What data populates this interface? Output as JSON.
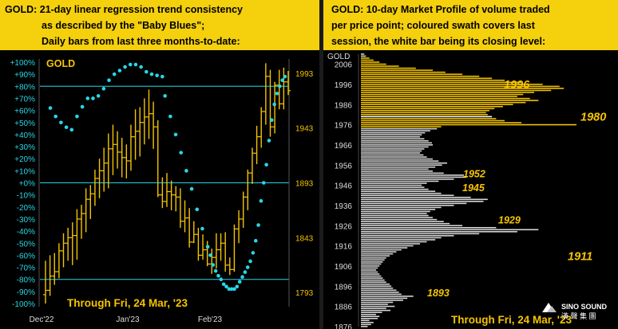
{
  "left": {
    "header_lines": [
      "GOLD: 21-day linear regression trend consistency",
      "as described by the \"Baby Blues\";",
      "Daily bars from last three months-to-date:"
    ],
    "legend": "GOLD",
    "footer": "Through Fri, 24 Mar, '23",
    "colors": {
      "bars": "#f5c400",
      "dots": "#27d7e7",
      "lines": "#27d7e7",
      "text": "#f5c400"
    }
  },
  "right": {
    "header_lines": [
      "GOLD: 10-day Market Profile of volume traded",
      "per price point; coloured swath covers last",
      "session, the white bar being its closing level:"
    ],
    "legend": "GOLD",
    "footer": "Through Fri, 24 Mar, '23",
    "colors": {
      "swath": "#f5c400",
      "profile": "#d8d8d8",
      "close": "#ffffff",
      "text": "#f5c400"
    }
  },
  "watermark": {
    "line1": "SINO SOUND",
    "line2": "漢 聲 集 團"
  },
  "chart_data": [
    {
      "type": "bar",
      "subtype": "ohlc-with-consistency-dots",
      "title": "GOLD: 21-day linear regression trend consistency as described by the \"Baby Blues\"; Daily bars from last three months-to-date:",
      "legend": "GOLD",
      "x_tick_labels": [
        "Dec'22",
        "Jan'23",
        "Feb'23"
      ],
      "left_axis": {
        "ticks": [
          "+100%",
          "+90%",
          "+80%",
          "+70%",
          "+60%",
          "+50%",
          "+40%",
          "+30%",
          "+20%",
          "+10%",
          "+0%",
          "-10%",
          "-20%",
          "-30%",
          "-40%",
          "-50%",
          "-60%",
          "-70%",
          "-80%",
          "-90%",
          "-100%"
        ],
        "range": [
          -100,
          100
        ]
      },
      "right_axis": {
        "ticks": [
          "1993",
          "1943",
          "1893",
          "1843",
          "1793"
        ],
        "range": [
          1783,
          2003
        ]
      },
      "reference_lines_pct": [
        80,
        0,
        -80
      ],
      "bars": [
        {
          "o": 1791,
          "h": 1822,
          "l": 1783,
          "c": 1795
        },
        {
          "o": 1795,
          "h": 1827,
          "l": 1790,
          "c": 1808
        },
        {
          "o": 1808,
          "h": 1829,
          "l": 1800,
          "c": 1812
        },
        {
          "o": 1812,
          "h": 1838,
          "l": 1806,
          "c": 1831
        },
        {
          "o": 1831,
          "h": 1847,
          "l": 1816,
          "c": 1838
        },
        {
          "o": 1838,
          "h": 1852,
          "l": 1822,
          "c": 1843
        },
        {
          "o": 1843,
          "h": 1857,
          "l": 1818,
          "c": 1845
        },
        {
          "o": 1845,
          "h": 1869,
          "l": 1823,
          "c": 1860
        },
        {
          "o": 1860,
          "h": 1873,
          "l": 1842,
          "c": 1865
        },
        {
          "o": 1865,
          "h": 1888,
          "l": 1848,
          "c": 1878
        },
        {
          "o": 1878,
          "h": 1891,
          "l": 1860,
          "c": 1883
        },
        {
          "o": 1883,
          "h": 1905,
          "l": 1872,
          "c": 1897
        },
        {
          "o": 1897,
          "h": 1915,
          "l": 1879,
          "c": 1904
        },
        {
          "o": 1904,
          "h": 1925,
          "l": 1885,
          "c": 1911
        },
        {
          "o": 1911,
          "h": 1938,
          "l": 1888,
          "c": 1924
        },
        {
          "o": 1924,
          "h": 1946,
          "l": 1900,
          "c": 1928
        },
        {
          "o": 1928,
          "h": 1940,
          "l": 1906,
          "c": 1921
        },
        {
          "o": 1921,
          "h": 1934,
          "l": 1898,
          "c": 1916
        },
        {
          "o": 1916,
          "h": 1928,
          "l": 1897,
          "c": 1913
        },
        {
          "o": 1913,
          "h": 1946,
          "l": 1904,
          "c": 1935
        },
        {
          "o": 1935,
          "h": 1960,
          "l": 1914,
          "c": 1940
        },
        {
          "o": 1940,
          "h": 1962,
          "l": 1917,
          "c": 1948
        },
        {
          "o": 1948,
          "h": 1970,
          "l": 1928,
          "c": 1953
        },
        {
          "o": 1953,
          "h": 1978,
          "l": 1933,
          "c": 1956
        },
        {
          "o": 1956,
          "h": 1967,
          "l": 1924,
          "c": 1944
        },
        {
          "o": 1944,
          "h": 1950,
          "l": 1880,
          "c": 1882
        },
        {
          "o": 1882,
          "h": 1898,
          "l": 1870,
          "c": 1876
        },
        {
          "o": 1876,
          "h": 1902,
          "l": 1871,
          "c": 1885
        },
        {
          "o": 1885,
          "h": 1895,
          "l": 1868,
          "c": 1882
        },
        {
          "o": 1882,
          "h": 1890,
          "l": 1867,
          "c": 1880
        },
        {
          "o": 1880,
          "h": 1888,
          "l": 1852,
          "c": 1858
        },
        {
          "o": 1858,
          "h": 1877,
          "l": 1848,
          "c": 1861
        },
        {
          "o": 1861,
          "h": 1870,
          "l": 1834,
          "c": 1839
        },
        {
          "o": 1839,
          "h": 1858,
          "l": 1838,
          "c": 1846
        },
        {
          "o": 1846,
          "h": 1852,
          "l": 1822,
          "c": 1827
        },
        {
          "o": 1827,
          "h": 1846,
          "l": 1823,
          "c": 1832
        },
        {
          "o": 1832,
          "h": 1840,
          "l": 1817,
          "c": 1819
        },
        {
          "o": 1819,
          "h": 1833,
          "l": 1810,
          "c": 1825
        },
        {
          "o": 1825,
          "h": 1847,
          "l": 1815,
          "c": 1832
        },
        {
          "o": 1832,
          "h": 1847,
          "l": 1822,
          "c": 1838
        },
        {
          "o": 1838,
          "h": 1848,
          "l": 1812,
          "c": 1818
        },
        {
          "o": 1818,
          "h": 1825,
          "l": 1809,
          "c": 1814
        },
        {
          "o": 1814,
          "h": 1855,
          "l": 1812,
          "c": 1851
        },
        {
          "o": 1851,
          "h": 1868,
          "l": 1838,
          "c": 1860
        },
        {
          "o": 1860,
          "h": 1885,
          "l": 1852,
          "c": 1880
        },
        {
          "o": 1880,
          "h": 1905,
          "l": 1868,
          "c": 1902
        },
        {
          "o": 1902,
          "h": 1925,
          "l": 1892,
          "c": 1920
        },
        {
          "o": 1920,
          "h": 1945,
          "l": 1910,
          "c": 1935
        },
        {
          "o": 1935,
          "h": 1962,
          "l": 1925,
          "c": 1958
        },
        {
          "o": 1958,
          "h": 2002,
          "l": 1946,
          "c": 1990
        },
        {
          "o": 1990,
          "h": 1996,
          "l": 1935,
          "c": 1944
        },
        {
          "o": 1944,
          "h": 1985,
          "l": 1938,
          "c": 1982
        },
        {
          "o": 1982,
          "h": 1996,
          "l": 1960,
          "c": 1965
        },
        {
          "o": 1965,
          "h": 1998,
          "l": 1960,
          "c": 1985
        },
        {
          "o": 1985,
          "h": 1995,
          "l": 1973,
          "c": 1977
        }
      ],
      "consistency_pct": [
        [
          3,
          62
        ],
        [
          5,
          55
        ],
        [
          7,
          50
        ],
        [
          9,
          46
        ],
        [
          11,
          44
        ],
        [
          13,
          55
        ],
        [
          15,
          63
        ],
        [
          17,
          70
        ],
        [
          19,
          70
        ],
        [
          21,
          72
        ],
        [
          23,
          78
        ],
        [
          25,
          85
        ],
        [
          27,
          90
        ],
        [
          29,
          93
        ],
        [
          31,
          96
        ],
        [
          33,
          98
        ],
        [
          35,
          98
        ],
        [
          37,
          96
        ],
        [
          39,
          92
        ],
        [
          41,
          90
        ],
        [
          43,
          89
        ],
        [
          45,
          88
        ],
        [
          46,
          72
        ],
        [
          48,
          55
        ],
        [
          50,
          40
        ],
        [
          52,
          25
        ],
        [
          54,
          10
        ],
        [
          56,
          -5
        ],
        [
          58,
          -22
        ],
        [
          60,
          -38
        ],
        [
          62,
          -53
        ],
        [
          63,
          -60
        ],
        [
          64,
          -68
        ],
        [
          65,
          -73
        ],
        [
          66,
          -77
        ],
        [
          67,
          -80
        ],
        [
          68,
          -84
        ],
        [
          69,
          -86
        ],
        [
          70,
          -88
        ],
        [
          71,
          -88
        ],
        [
          72,
          -88
        ],
        [
          73,
          -86
        ],
        [
          74,
          -82
        ],
        [
          75,
          -78
        ],
        [
          76,
          -74
        ],
        [
          77,
          -70
        ],
        [
          78,
          -65
        ],
        [
          79,
          -58
        ],
        [
          80,
          -48
        ],
        [
          81,
          -35
        ],
        [
          82,
          -15
        ],
        [
          83,
          0
        ],
        [
          84,
          15
        ],
        [
          85,
          35
        ],
        [
          86,
          52
        ],
        [
          87,
          65
        ],
        [
          88,
          74
        ],
        [
          89,
          80
        ],
        [
          90,
          85
        ],
        [
          91,
          88
        ]
      ],
      "footer": "Through Fri, 24 Mar, '23"
    },
    {
      "type": "bar",
      "subtype": "horizontal-volume-profile",
      "title": "GOLD: 10-day Market Profile of volume traded per price point; coloured swath covers last session, the white bar being its closing level:",
      "legend": "GOLD",
      "y_ticks": [
        2006,
        1996,
        1986,
        1976,
        1966,
        1956,
        1946,
        1936,
        1926,
        1916,
        1906,
        1896,
        1886,
        1876
      ],
      "y_range": [
        1876,
        2011
      ],
      "swath_range": [
        1975,
        2009
      ],
      "close_level": 1980,
      "labels": [
        {
          "price": 1996,
          "text": "1996"
        },
        {
          "price": 1980,
          "text": "1980"
        },
        {
          "price": 1952,
          "text": "1952"
        },
        {
          "price": 1945,
          "text": "1945"
        },
        {
          "price": 1929,
          "text": "1929"
        },
        {
          "price": 1911,
          "text": "1911"
        },
        {
          "price": 1893,
          "text": "1893"
        }
      ],
      "profile_bin_size": 1,
      "profile_start_price": 1876,
      "profile_volumes": [
        8,
        12,
        15,
        10,
        20,
        22,
        18,
        25,
        35,
        30,
        40,
        32,
        38,
        50,
        55,
        62,
        48,
        45,
        42,
        38,
        36,
        34,
        30,
        28,
        26,
        24,
        22,
        20,
        18,
        20,
        22,
        24,
        26,
        28,
        30,
        34,
        38,
        42,
        48,
        55,
        62,
        70,
        78,
        88,
        95,
        110,
        140,
        185,
        210,
        160,
        120,
        105,
        98,
        90,
        85,
        80,
        78,
        82,
        88,
        95,
        110,
        125,
        145,
        150,
        130,
        110,
        95,
        88,
        80,
        75,
        72,
        78,
        92,
        110,
        125,
        122,
        98,
        85,
        80,
        88,
        96,
        102,
        92,
        85,
        78,
        74,
        70,
        72,
        75,
        80,
        85,
        84,
        80,
        75,
        70,
        72,
        76,
        82,
        90,
        95,
        255,
        190,
        170,
        160,
        155,
        150,
        148,
        152,
        158,
        168,
        180,
        195,
        210,
        200,
        185,
        192,
        205,
        225,
        240,
        235,
        215,
        190,
        170,
        155,
        140,
        120,
        100,
        85,
        65,
        45,
        30,
        22,
        15,
        10,
        6,
        4
      ],
      "footer": "Through Fri, 24 Mar, '23"
    }
  ]
}
